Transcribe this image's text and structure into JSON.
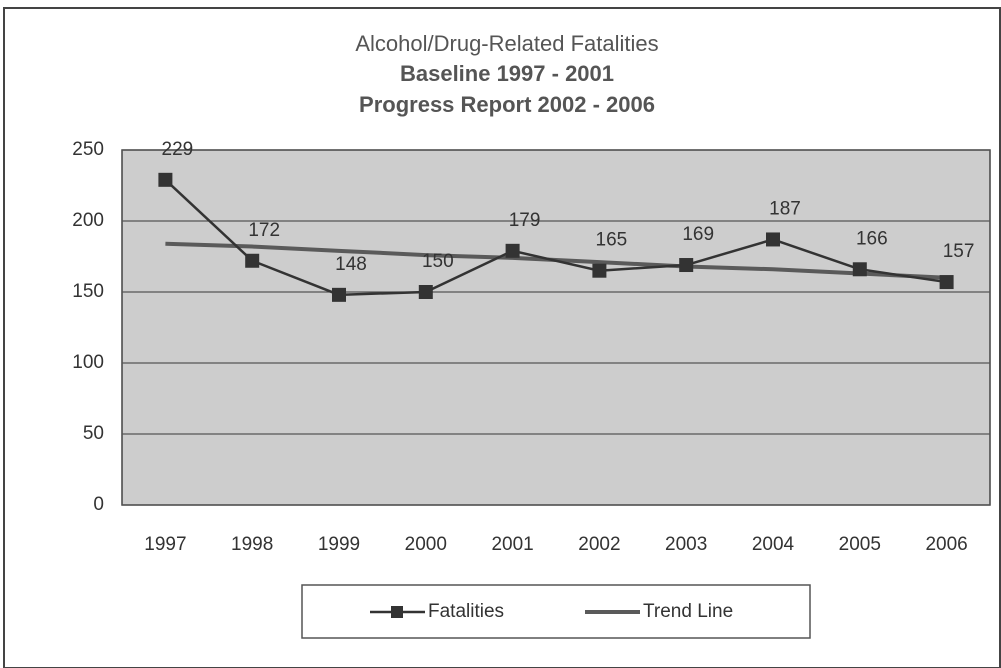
{
  "chart_data": {
    "type": "line",
    "title": "Alcohol/Drug-Related Fatalities",
    "subtitle": [
      "Baseline 1997 - 2001",
      "Progress Report 2002 - 2006"
    ],
    "categories": [
      "1997",
      "1998",
      "1999",
      "2000",
      "2001",
      "2002",
      "2003",
      "2004",
      "2005",
      "2006"
    ],
    "series": [
      {
        "name": "Fatalities",
        "color": "#333333",
        "values": [
          229,
          172,
          148,
          150,
          179,
          165,
          169,
          187,
          166,
          157
        ],
        "labels": true,
        "marker": "square"
      },
      {
        "name": "Trend Line",
        "color": "#5a5a5a",
        "values": [
          184,
          182,
          179,
          176,
          174,
          171,
          168,
          166,
          163,
          160
        ],
        "labels": false,
        "marker": null
      }
    ],
    "ylim": [
      0,
      250
    ],
    "yticks": [
      0,
      50,
      100,
      150,
      200,
      250
    ],
    "grid": true,
    "legend": "bottom"
  }
}
